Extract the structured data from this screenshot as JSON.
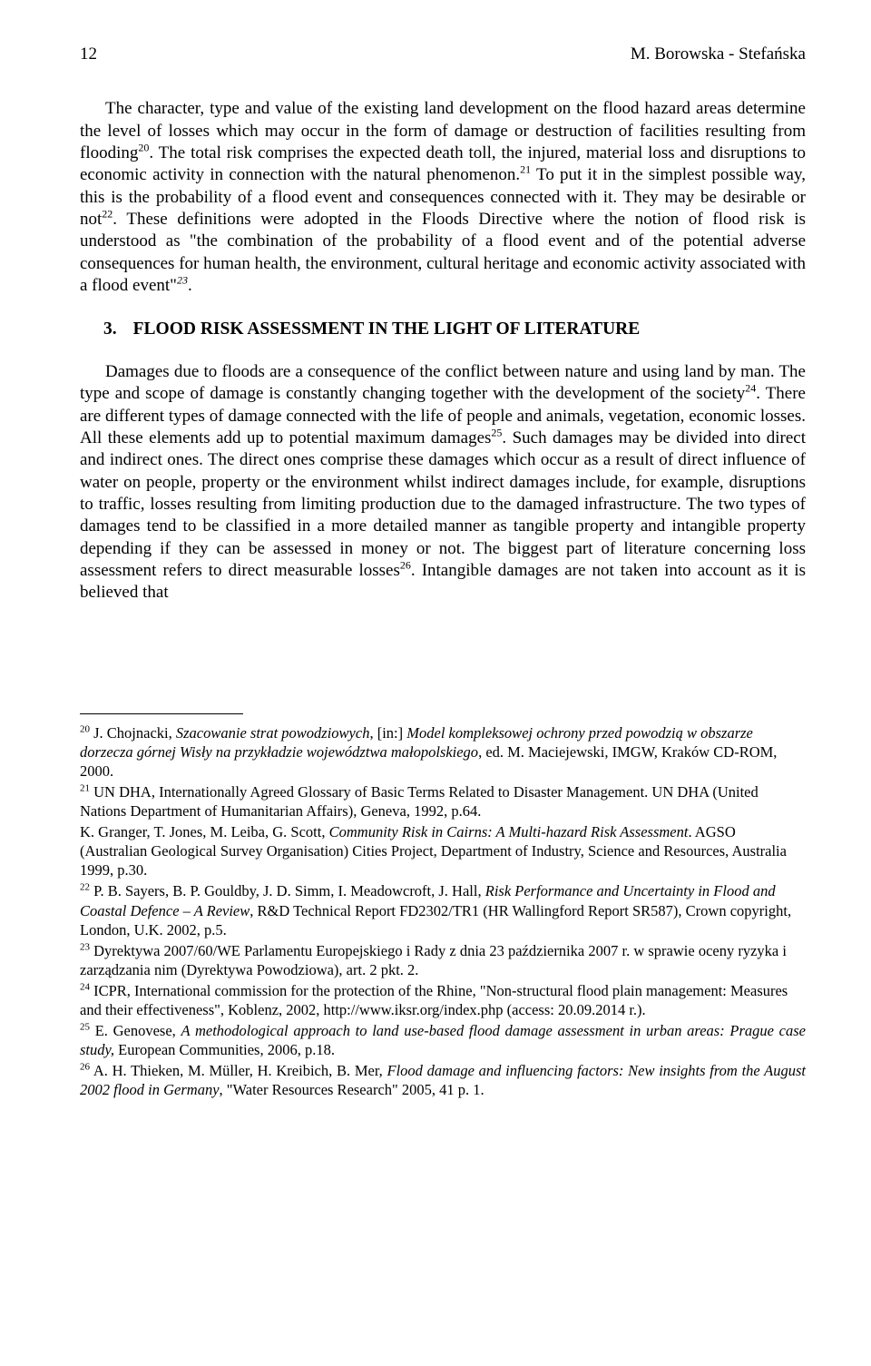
{
  "header": {
    "page_number": "12",
    "running_head": "M. Borowska - Stefańska"
  },
  "para1_part1": "The character, type and value of the existing land development on the flood hazard areas determine the level of losses which may occur in the form of damage or destruction of facilities resulting from flooding",
  "fn20_sup": "20",
  "para1_part2": ". The total risk comprises the expected death toll, the injured, material loss and disruptions to economic activity in connection with the natural phenomenon.",
  "fn21_sup": "21",
  "para1_part3": " To put it in the simplest possible way, this is the probability of a flood event and consequences connected with it. They may be desirable or not",
  "fn22_sup": "22",
  "para1_part4": ". These definitions were adopted in the Floods Directive where the notion of flood risk is understood as \"the combination of the probability of a flood event and of the potential adverse consequences for human health, the environment, cultural heritage and economic activity associated with a flood event\"",
  "fn23_sup": "23",
  "para1_part5": ".",
  "section": {
    "number": "3.",
    "title": "FLOOD RISK ASSESSMENT IN THE LIGHT OF LITERATURE"
  },
  "para2_part1": "Damages due to floods are a consequence of the conflict between nature and using land by man. The type and scope of damage is constantly changing together with the development of the society",
  "fn24_sup": "24",
  "para2_part2": ". There are different types of damage connected with the life of people and animals, vegetation, economic losses. All these elements add up to potential maximum damages",
  "fn25_sup": "25",
  "para2_part3": ". Such damages may be divided into direct and indirect ones. The direct ones comprise these damages which occur as a result of direct influence of water on people, property or the environment whilst indirect damages include, for example, disruptions to traffic, losses resulting from limiting production due to the damaged infrastructure. The two types of damages tend to be classified in a more detailed manner as tangible property and intangible property depending if they can be assessed in money or not. The biggest part of literature concerning loss assessment refers to direct measurable losses",
  "fn26_sup": "26",
  "para2_part4": ". Intangible damages are not taken into account as it is believed that",
  "footnotes": {
    "f20": {
      "num": "20",
      "t1": " J. Chojnacki, ",
      "t2_ital": "Szacowanie strat powodziowych",
      "t3": ", [in:] ",
      "t4_ital": "Model kompleksowej ochrony przed powodzią w obszarze dorzecza górnej Wisły na przykładzie województwa małopolskiego",
      "t5": ", ed. M. Maciejewski, IMGW, Kraków CD-ROM, 2000."
    },
    "f21": {
      "num": "21",
      "t1": " UN DHA, Internationally Agreed Glossary of Basic Terms Related to Disaster Management. UN DHA (United Nations Department of Humanitarian Affairs), Geneva, 1992, p.64.",
      "t2": "K. Granger, T. Jones, M. Leiba, G. Scott, ",
      "t3_ital": "Community Risk in Cairns: A Multi-hazard Risk Assessment",
      "t4": ". AGSO (Australian Geological Survey Organisation) Cities Project, Department of Industry, Science and Resources, Australia 1999, p.30."
    },
    "f22": {
      "num": "22",
      "t1": " P. B. Sayers, B. P. Gouldby, J. D. Simm, I. Meadowcroft, J. Hall, ",
      "t2_ital": "Risk Performance and Uncertainty in Flood and Coastal Defence – A Review",
      "t3": ", R&D Technical Report FD2302/TR1 (HR Wallingford Report SR587), Crown copyright, London, U.K. 2002, p.5."
    },
    "f23": {
      "num": "23",
      "t1": " Dyrektywa 2007/60/WE Parlamentu Europejskiego i Rady z dnia 23 października 2007 r. w sprawie oceny ryzyka i zarządzania nim (Dyrektywa Powodziowa), art. 2 pkt. 2."
    },
    "f24": {
      "num": "24",
      "t1": " ICPR, International commission for the protection of the Rhine, \"Non-structural  flood plain management: Measures and their effectiveness\", Koblenz, 2002, http://www.iksr.org/index.php (access: 20.09.2014 r.)."
    },
    "f25": {
      "num": "25",
      "t1": " E. Genovese, ",
      "t2_ital": "A methodological approach to land use-based flood damage assessment in urban areas: Prague case study,",
      "t3": " European Communities, 2006, p.18."
    },
    "f26": {
      "num": "26",
      "t1": " A. H. Thieken, M. Müller, H. Kreibich, B. Mer, ",
      "t2_ital": "Flood damage and influencing factors: New insights from the August 2002 flood in Germany",
      "t3": ", \"Water Resources Research\" 2005, 41  p. 1."
    }
  }
}
